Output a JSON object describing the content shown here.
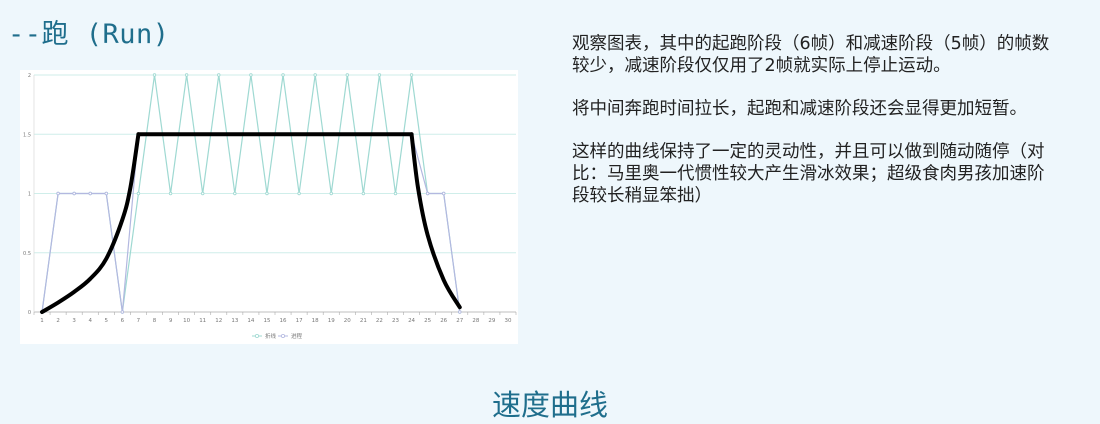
{
  "slide": {
    "title": "--跑 (Run)",
    "caption": "速度曲线",
    "paragraphs": [
      "观察图表，其中的起跑阶段（6帧）和减速阶段（5帧）的帧数较少，减速阶段仅仅用了2帧就实际上停止运动。",
      "将中间奔跑时间拉长，起跑和减速阶段还会显得更加短暂。",
      "这样的曲线保持了一定的灵动性，并且可以做到随动随停（对比：马里奥一代惯性较大产生滑冰效果；超级食肉男孩加速阶段较长稍显笨拙）"
    ]
  },
  "chart_data": {
    "type": "line",
    "categories": [
      "1",
      "2",
      "3",
      "4",
      "5",
      "6",
      "7",
      "8",
      "9",
      "10",
      "11",
      "12",
      "13",
      "14",
      "15",
      "16",
      "17",
      "18",
      "19",
      "20",
      "21",
      "22",
      "23",
      "24",
      "25",
      "26",
      "27",
      "28",
      "29",
      "30"
    ],
    "ylim": [
      0,
      2
    ],
    "yticks": [
      0,
      0.5,
      1,
      1.5,
      2
    ],
    "ytick_labels": [
      "0",
      "0.5",
      "1",
      "1.5",
      "2"
    ],
    "grid": true,
    "legend_position": "bottom",
    "series": [
      {
        "name": "折线",
        "color": "#9fd9d2",
        "values": [
          0,
          1,
          1,
          1,
          1,
          0,
          1,
          2,
          1,
          2,
          1,
          2,
          1,
          2,
          1,
          2,
          1,
          2,
          1,
          2,
          1,
          2,
          1,
          2,
          1,
          1,
          0,
          null,
          null,
          null
        ]
      },
      {
        "name": "进程",
        "color": "#b3b8e0",
        "values": [
          0,
          1,
          1,
          1,
          1,
          0,
          1.5,
          1.5,
          1.5,
          1.5,
          1.5,
          1.5,
          1.5,
          1.5,
          1.5,
          1.5,
          1.5,
          1.5,
          1.5,
          1.5,
          1.5,
          1.5,
          1.5,
          1.5,
          1,
          1,
          0,
          null,
          null,
          null
        ]
      }
    ],
    "overlay_curve": {
      "color": "#000000",
      "points": [
        [
          1,
          0
        ],
        [
          2,
          0.08
        ],
        [
          3,
          0.17
        ],
        [
          4,
          0.28
        ],
        [
          5,
          0.45
        ],
        [
          6,
          0.78
        ],
        [
          6.5,
          1.05
        ],
        [
          7,
          1.5
        ],
        [
          24,
          1.5
        ],
        [
          24.4,
          1.05
        ],
        [
          25,
          0.65
        ],
        [
          26,
          0.27
        ],
        [
          27,
          0.04
        ]
      ]
    }
  }
}
